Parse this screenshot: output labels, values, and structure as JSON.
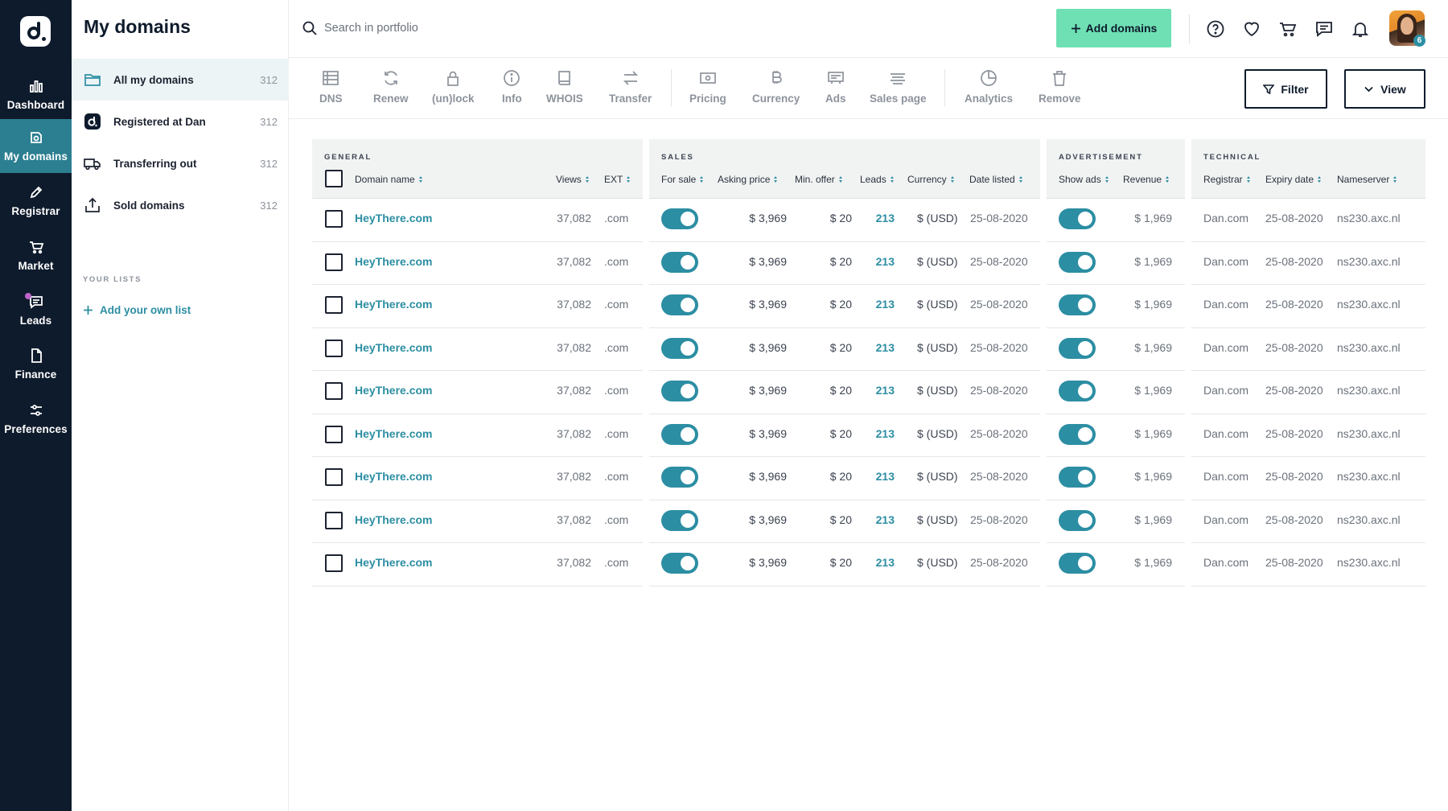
{
  "rail": {
    "items": [
      {
        "label": "Dashboard",
        "icon": "bar-chart-icon"
      },
      {
        "label": "My domains",
        "icon": "domain-icon",
        "active": true
      },
      {
        "label": "Registrar",
        "icon": "pencil-icon"
      },
      {
        "label": "Market",
        "icon": "cart-icon"
      },
      {
        "label": "Leads",
        "icon": "chat-icon"
      },
      {
        "label": "Finance",
        "icon": "file-icon"
      },
      {
        "label": "Preferences",
        "icon": "sliders-icon"
      }
    ]
  },
  "sidebar": {
    "title": "My domains",
    "items": [
      {
        "label": "All my domains",
        "count": "312",
        "icon": "folder-icon"
      },
      {
        "label": "Registered at Dan",
        "count": "312",
        "icon": "dan-logo-icon"
      },
      {
        "label": "Transferring out",
        "count": "312",
        "icon": "truck-icon"
      },
      {
        "label": "Sold domains",
        "count": "312",
        "icon": "upload-icon"
      }
    ],
    "lists_heading": "YOUR LISTS",
    "add_list": "Add your own list"
  },
  "header": {
    "search_placeholder": "Search in portfolio",
    "add_domains": "Add domains",
    "avatar_badge": "6"
  },
  "toolbar": {
    "tools": [
      "DNS",
      "Renew",
      "(un)lock",
      "Info",
      "WHOIS",
      "Transfer",
      "Pricing",
      "Currency",
      "Ads",
      "Sales page",
      "Analytics",
      "Remove"
    ],
    "filter": "Filter",
    "view": "View"
  },
  "table": {
    "groups": {
      "general": "GENERAL",
      "sales": "SALES",
      "advertisement": "ADVERTISEMENT",
      "technical": "TECHNICAL"
    },
    "columns": {
      "domain": "Domain name",
      "views": "Views",
      "ext": "EXT",
      "for_sale": "For sale",
      "asking_price": "Asking price",
      "min_offer": "Min. offer",
      "leads": "Leads",
      "currency": "Currency",
      "date_listed": "Date listed",
      "show_ads": "Show ads",
      "revenue": "Revenue",
      "registrar": "Registrar",
      "expiry": "Expiry date",
      "nameserver": "Nameserver"
    },
    "rows": [
      {
        "domain": "HeyThere.com",
        "views": "37,082",
        "ext": ".com",
        "asking_price": "$ 3,969",
        "min_offer": "$ 20",
        "leads": "213",
        "currency": "$ (USD)",
        "date_listed": "25-08-2020",
        "revenue": "$ 1,969",
        "registrar": "Dan.com",
        "expiry": "25-08-2020",
        "nameserver": "ns230.axc.nl"
      },
      {
        "domain": "HeyThere.com",
        "views": "37,082",
        "ext": ".com",
        "asking_price": "$ 3,969",
        "min_offer": "$ 20",
        "leads": "213",
        "currency": "$ (USD)",
        "date_listed": "25-08-2020",
        "revenue": "$ 1,969",
        "registrar": "Dan.com",
        "expiry": "25-08-2020",
        "nameserver": "ns230.axc.nl"
      },
      {
        "domain": "HeyThere.com",
        "views": "37,082",
        "ext": ".com",
        "asking_price": "$ 3,969",
        "min_offer": "$ 20",
        "leads": "213",
        "currency": "$ (USD)",
        "date_listed": "25-08-2020",
        "revenue": "$ 1,969",
        "registrar": "Dan.com",
        "expiry": "25-08-2020",
        "nameserver": "ns230.axc.nl"
      },
      {
        "domain": "HeyThere.com",
        "views": "37,082",
        "ext": ".com",
        "asking_price": "$ 3,969",
        "min_offer": "$ 20",
        "leads": "213",
        "currency": "$ (USD)",
        "date_listed": "25-08-2020",
        "revenue": "$ 1,969",
        "registrar": "Dan.com",
        "expiry": "25-08-2020",
        "nameserver": "ns230.axc.nl"
      },
      {
        "domain": "HeyThere.com",
        "views": "37,082",
        "ext": ".com",
        "asking_price": "$ 3,969",
        "min_offer": "$ 20",
        "leads": "213",
        "currency": "$ (USD)",
        "date_listed": "25-08-2020",
        "revenue": "$ 1,969",
        "registrar": "Dan.com",
        "expiry": "25-08-2020",
        "nameserver": "ns230.axc.nl"
      },
      {
        "domain": "HeyThere.com",
        "views": "37,082",
        "ext": ".com",
        "asking_price": "$ 3,969",
        "min_offer": "$ 20",
        "leads": "213",
        "currency": "$ (USD)",
        "date_listed": "25-08-2020",
        "revenue": "$ 1,969",
        "registrar": "Dan.com",
        "expiry": "25-08-2020",
        "nameserver": "ns230.axc.nl"
      },
      {
        "domain": "HeyThere.com",
        "views": "37,082",
        "ext": ".com",
        "asking_price": "$ 3,969",
        "min_offer": "$ 20",
        "leads": "213",
        "currency": "$ (USD)",
        "date_listed": "25-08-2020",
        "revenue": "$ 1,969",
        "registrar": "Dan.com",
        "expiry": "25-08-2020",
        "nameserver": "ns230.axc.nl"
      },
      {
        "domain": "HeyThere.com",
        "views": "37,082",
        "ext": ".com",
        "asking_price": "$ 3,969",
        "min_offer": "$ 20",
        "leads": "213",
        "currency": "$ (USD)",
        "date_listed": "25-08-2020",
        "revenue": "$ 1,969",
        "registrar": "Dan.com",
        "expiry": "25-08-2020",
        "nameserver": "ns230.axc.nl"
      },
      {
        "domain": "HeyThere.com",
        "views": "37,082",
        "ext": ".com",
        "asking_price": "$ 3,969",
        "min_offer": "$ 20",
        "leads": "213",
        "currency": "$ (USD)",
        "date_listed": "25-08-2020",
        "revenue": "$ 1,969",
        "registrar": "Dan.com",
        "expiry": "25-08-2020",
        "nameserver": "ns230.axc.nl"
      }
    ]
  },
  "colors": {
    "rail_bg": "#0e1b2c",
    "accent": "#2c8ea3",
    "add_button": "#6ee0b4"
  }
}
